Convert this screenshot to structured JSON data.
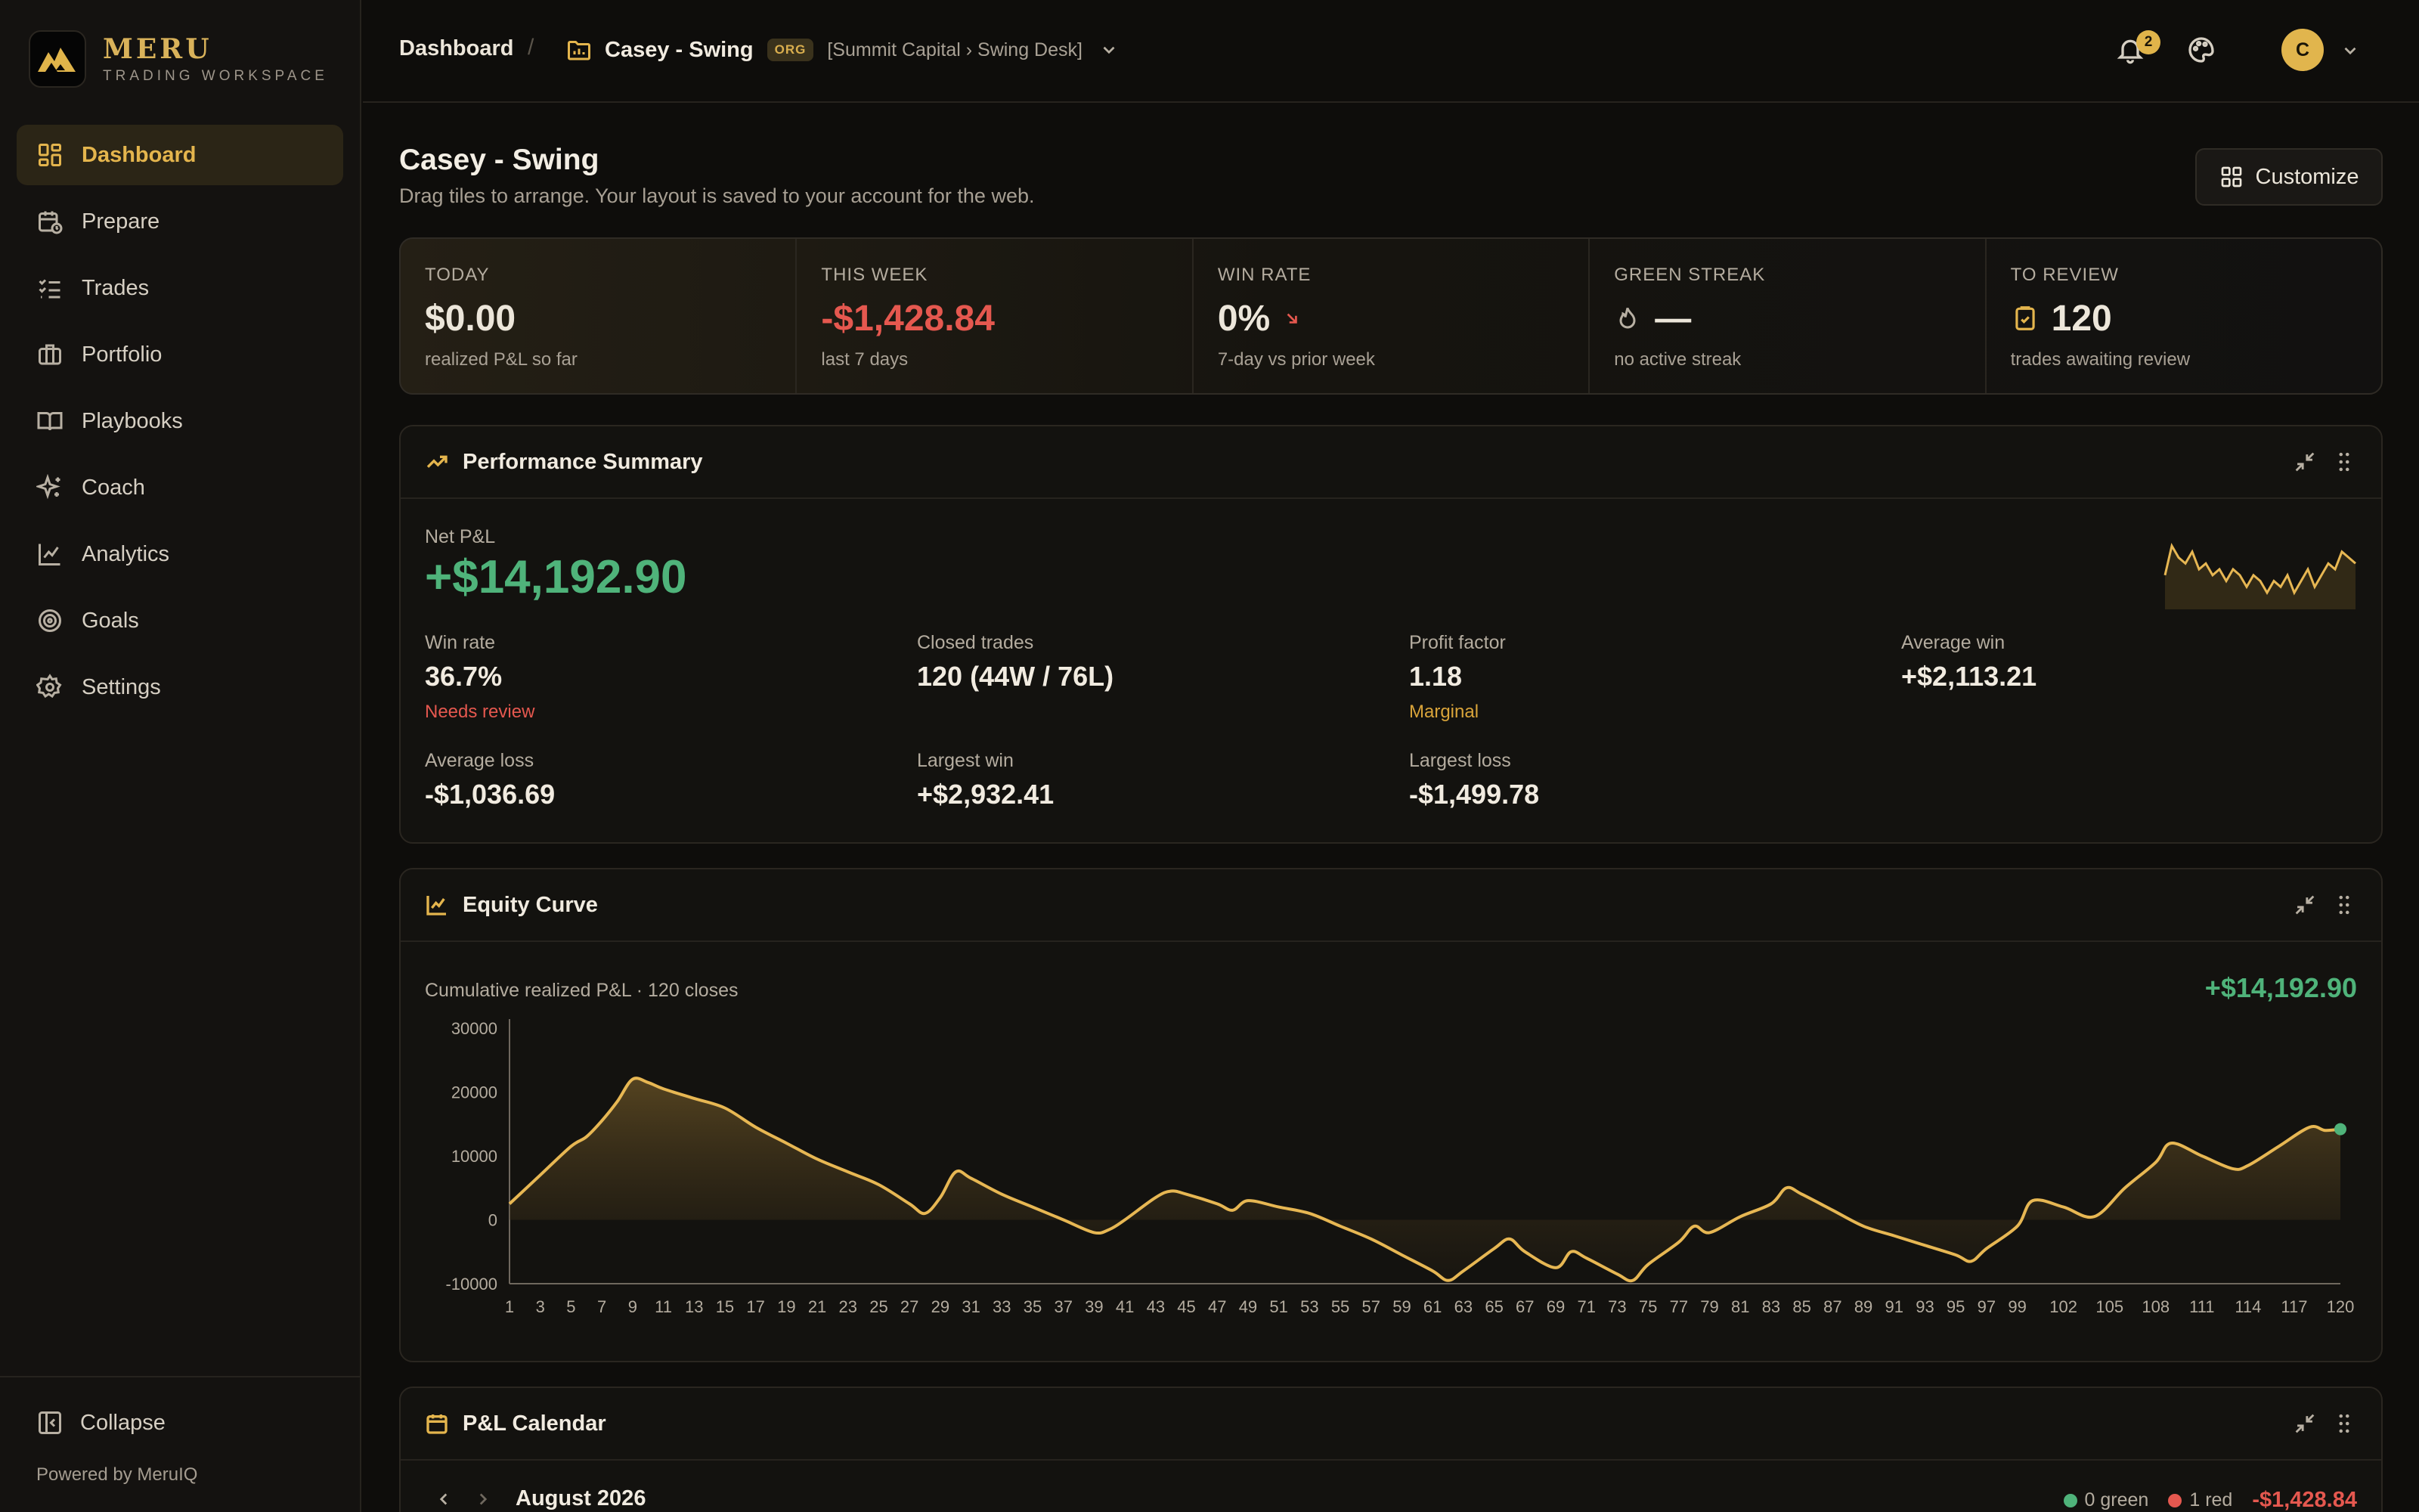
{
  "brand": {
    "name": "MERU",
    "subtitle": "TRADING WORKSPACE"
  },
  "sidebar": {
    "items": [
      {
        "label": "Dashboard",
        "icon": "dashboard-icon",
        "active": true
      },
      {
        "label": "Prepare",
        "icon": "calendar-clock-icon"
      },
      {
        "label": "Trades",
        "icon": "list-check-icon"
      },
      {
        "label": "Portfolio",
        "icon": "briefcase-icon"
      },
      {
        "label": "Playbooks",
        "icon": "book-open-icon"
      },
      {
        "label": "Coach",
        "icon": "sparkles-icon"
      },
      {
        "label": "Analytics",
        "icon": "line-chart-icon"
      },
      {
        "label": "Goals",
        "icon": "target-icon"
      },
      {
        "label": "Settings",
        "icon": "gear-icon"
      }
    ],
    "collapse_label": "Collapse",
    "powered_by": "Powered by MeruIQ"
  },
  "header": {
    "breadcrumb_root": "Dashboard",
    "separator": "/",
    "account_name": "Casey - Swing",
    "org_badge": "ORG",
    "account_path": "[Summit Capital › Swing Desk]",
    "notification_count": "2",
    "avatar_initial": "C"
  },
  "page": {
    "title": "Casey - Swing",
    "subtitle": "Drag tiles to arrange. Your layout is saved to your account for the web.",
    "customize_label": "Customize"
  },
  "stats": [
    {
      "label": "TODAY",
      "value": "$0.00",
      "note": "realized P&L so far"
    },
    {
      "label": "THIS WEEK",
      "value": "-$1,428.84",
      "note": "last 7 days"
    },
    {
      "label": "WIN RATE",
      "value": "0%",
      "note": "7-day vs prior week"
    },
    {
      "label": "GREEN STREAK",
      "value": "—",
      "note": "no active streak"
    },
    {
      "label": "TO REVIEW",
      "value": "120",
      "note": "trades awaiting review"
    }
  ],
  "performance": {
    "title": "Performance Summary",
    "net_label": "Net P&L",
    "net_value": "+$14,192.90",
    "metrics": [
      {
        "label": "Win rate",
        "value": "36.7%",
        "note": "Needs review"
      },
      {
        "label": "Closed trades",
        "value": "120 (44W / 76L)"
      },
      {
        "label": "Profit factor",
        "value": "1.18",
        "note": "Marginal"
      },
      {
        "label": "Average win",
        "value": "+$2,113.21"
      },
      {
        "label": "Average loss",
        "value": "-$1,036.69"
      },
      {
        "label": "Largest win",
        "value": "+$2,932.41"
      },
      {
        "label": "Largest loss",
        "value": "-$1,499.78"
      }
    ],
    "colors": {
      "positive": "#4fb37a",
      "negative": "#e5584f",
      "warning": "#d9a43a",
      "accent": "#e4b54d"
    }
  },
  "equity": {
    "title": "Equity Curve",
    "subtitle": "Cumulative realized P&L · 120 closes",
    "total": "+$14,192.90"
  },
  "calendar": {
    "title": "P&L Calendar",
    "month": "August 2026",
    "green_count": "0 green",
    "red_count": "1 red",
    "total": "-$1,428.84"
  },
  "chart_data": {
    "type": "area",
    "xlabel": "",
    "ylabel": "",
    "ylim": [
      -10000,
      30000
    ],
    "yticks": [
      30000,
      20000,
      10000,
      0,
      -10000
    ],
    "xlim": [
      1,
      120
    ],
    "xticks": [
      1,
      3,
      5,
      7,
      9,
      11,
      13,
      15,
      17,
      19,
      21,
      23,
      25,
      27,
      29,
      31,
      33,
      35,
      37,
      39,
      41,
      43,
      45,
      47,
      49,
      51,
      53,
      55,
      57,
      59,
      61,
      63,
      65,
      67,
      69,
      71,
      73,
      75,
      77,
      79,
      81,
      83,
      85,
      87,
      89,
      91,
      93,
      95,
      97,
      99,
      102,
      105,
      108,
      111,
      114,
      117,
      120
    ],
    "points": [
      [
        1,
        2500
      ],
      [
        3,
        7000
      ],
      [
        5,
        11500
      ],
      [
        6,
        13000
      ],
      [
        7,
        15500
      ],
      [
        8,
        18500
      ],
      [
        9,
        22000
      ],
      [
        10,
        21500
      ],
      [
        11,
        20500
      ],
      [
        13,
        19000
      ],
      [
        15,
        17500
      ],
      [
        17,
        14500
      ],
      [
        19,
        12000
      ],
      [
        21,
        9500
      ],
      [
        23,
        7500
      ],
      [
        25,
        5500
      ],
      [
        27,
        2500
      ],
      [
        28,
        1000
      ],
      [
        29,
        3500
      ],
      [
        30,
        7500
      ],
      [
        31,
        6500
      ],
      [
        33,
        4000
      ],
      [
        35,
        2000
      ],
      [
        37,
        0
      ],
      [
        39,
        -2000
      ],
      [
        40,
        -1500
      ],
      [
        41,
        0
      ],
      [
        43,
        3500
      ],
      [
        44,
        4500
      ],
      [
        45,
        4000
      ],
      [
        47,
        2500
      ],
      [
        48,
        1500
      ],
      [
        49,
        3000
      ],
      [
        51,
        2000
      ],
      [
        53,
        1000
      ],
      [
        55,
        -1000
      ],
      [
        57,
        -3000
      ],
      [
        59,
        -5500
      ],
      [
        61,
        -8000
      ],
      [
        62,
        -9500
      ],
      [
        63,
        -8000
      ],
      [
        65,
        -4500
      ],
      [
        66,
        -3000
      ],
      [
        67,
        -5000
      ],
      [
        69,
        -7500
      ],
      [
        70,
        -5000
      ],
      [
        71,
        -6000
      ],
      [
        73,
        -8500
      ],
      [
        74,
        -9500
      ],
      [
        75,
        -7000
      ],
      [
        77,
        -3500
      ],
      [
        78,
        -1000
      ],
      [
        79,
        -2000
      ],
      [
        81,
        500
      ],
      [
        83,
        2500
      ],
      [
        84,
        5000
      ],
      [
        85,
        4000
      ],
      [
        87,
        1500
      ],
      [
        89,
        -1000
      ],
      [
        91,
        -2500
      ],
      [
        93,
        -4000
      ],
      [
        95,
        -5500
      ],
      [
        96,
        -6500
      ],
      [
        97,
        -4500
      ],
      [
        99,
        -1000
      ],
      [
        100,
        3000
      ],
      [
        102,
        2000
      ],
      [
        104,
        500
      ],
      [
        106,
        5000
      ],
      [
        108,
        9000
      ],
      [
        109,
        12000
      ],
      [
        111,
        10000
      ],
      [
        113,
        8000
      ],
      [
        114,
        8500
      ],
      [
        116,
        11500
      ],
      [
        118,
        14500
      ],
      [
        119,
        14000
      ],
      [
        120,
        14192.9
      ]
    ],
    "series_color": "#e7b753",
    "end_marker_color": "#4fb37a",
    "grid": false
  },
  "sparkline_data": {
    "type": "area",
    "values": [
      4,
      9,
      7,
      6,
      8,
      5,
      6,
      4,
      5,
      3,
      5,
      4,
      2,
      4,
      3,
      1,
      3,
      2,
      4,
      1,
      3,
      5,
      2,
      4,
      6,
      5,
      8,
      7,
      6
    ]
  }
}
